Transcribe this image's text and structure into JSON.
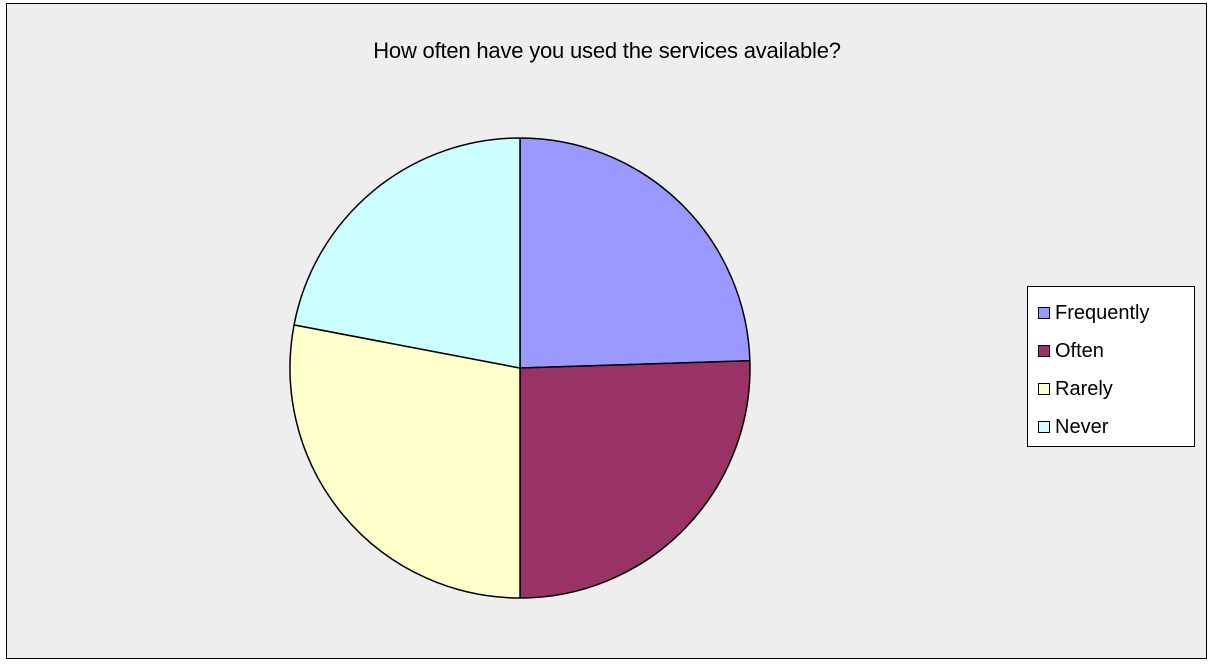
{
  "chart_data": {
    "type": "pie",
    "title": "How often have you used the services available?",
    "categories": [
      "Frequently",
      "Often",
      "Rarely",
      "Never"
    ],
    "values": [
      24.5,
      25.5,
      28,
      22
    ],
    "colors": [
      "#9999FF",
      "#993366",
      "#FFFFCC",
      "#CCFFFF"
    ],
    "start_angle": "12 o'clock, clockwise",
    "legend": "right",
    "background": "#EEEEEE",
    "pie_outline": "#000000"
  }
}
